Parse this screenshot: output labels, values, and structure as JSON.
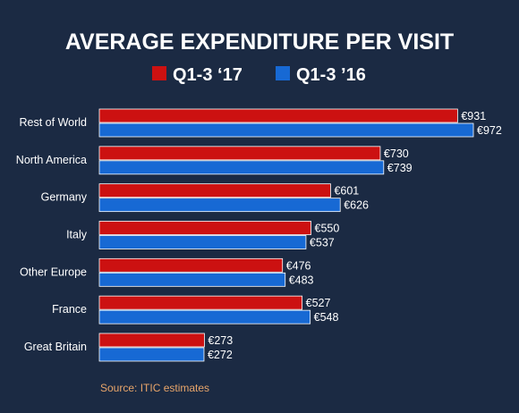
{
  "chart_data": {
    "type": "bar",
    "orientation": "horizontal",
    "title": "AVERAGE EXPENDITURE PER VISIT",
    "categories": [
      "Rest of World",
      "North America",
      "Germany",
      "Italy",
      "Other Europe",
      "France",
      "Great Britain"
    ],
    "series": [
      {
        "name": "Q1-3 ‘17",
        "color": "#cc1111",
        "values": [
          931,
          730,
          601,
          550,
          476,
          527,
          273
        ]
      },
      {
        "name": "Q1-3 ’16",
        "color": "#1769d4",
        "values": [
          972,
          739,
          626,
          537,
          483,
          548,
          272
        ]
      }
    ],
    "value_prefix": "€",
    "xlim": [
      0,
      972
    ],
    "grid": false,
    "legend_position": "top-center",
    "source": "Source: ITIC estimates"
  },
  "colors": {
    "background": "#1b2a43",
    "source_text": "#e8a56a"
  }
}
